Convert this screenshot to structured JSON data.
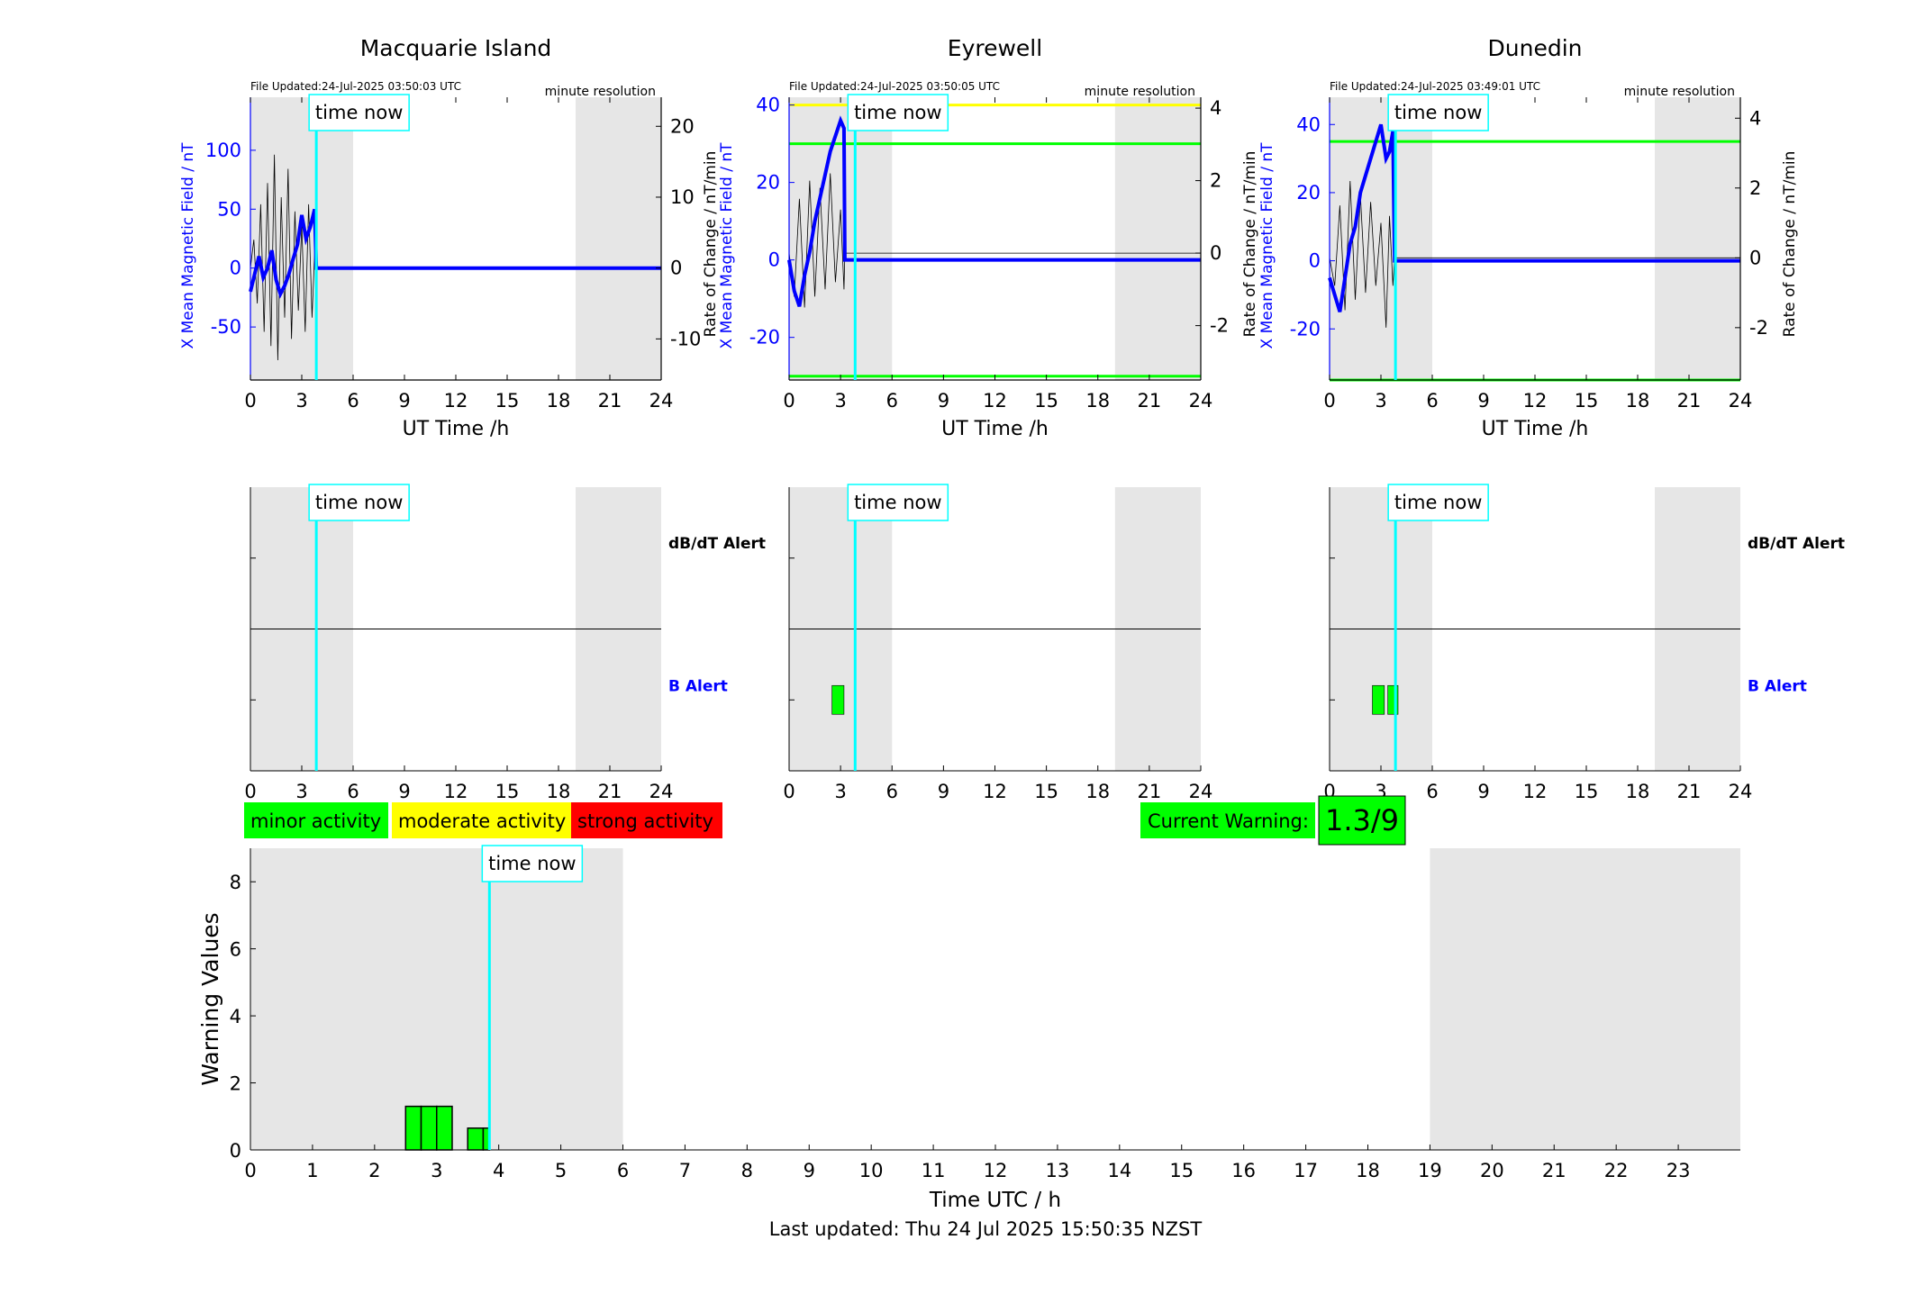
{
  "footer": {
    "last_updated": "Last updated: Thu 24 Jul 2025 15:50:35 NZST"
  },
  "colors": {
    "x_field": "#0000ff",
    "rate_of_change": "#000000",
    "time_now": "#00ffff",
    "night_shade": "#e6e6e6",
    "minor": "#00ff00",
    "moderate": "#ffff00",
    "strong": "#ff0000"
  },
  "legend": {
    "minor": "minor activity",
    "moderate": "moderate activity",
    "strong": "strong activity"
  },
  "current_warning": {
    "label": "Current Warning:",
    "value": "1.3/9"
  },
  "chart_data": [
    {
      "type": "line",
      "title": "Macquarie Island",
      "file_updated": "File Updated:24-Jul-2025 03:50:03 UTC",
      "resolution": "minute resolution",
      "time_now_label": "time now",
      "time_now": 3.85,
      "night_shade": [
        [
          0,
          6
        ],
        [
          19,
          24
        ]
      ],
      "xlabel": "UT Time /h",
      "ylabel": "X Mean Magnetic Field / nT",
      "ylabel_right": "Rate of Change / nT/min",
      "xlim": [
        0,
        24
      ],
      "xticks": [
        0,
        3,
        6,
        9,
        12,
        15,
        18,
        21,
        24
      ],
      "ylim": [
        -95,
        145
      ],
      "yticks": [
        -50,
        0,
        50,
        100
      ],
      "ylim_right": [
        -15.8,
        24.1
      ],
      "yticks_right": [
        -10,
        0,
        10,
        20
      ],
      "series": [
        {
          "axis": "left",
          "x": [
            0,
            0.25,
            0.5,
            0.75,
            1.0,
            1.25,
            1.5,
            1.75,
            2.0,
            2.25,
            2.5,
            2.75,
            3.0,
            3.25,
            3.5,
            3.75,
            3.85,
            24
          ],
          "y": [
            -20,
            -5,
            10,
            -8,
            0,
            15,
            -10,
            -22,
            -15,
            -5,
            8,
            20,
            45,
            25,
            35,
            50,
            0,
            0
          ]
        },
        {
          "axis": "right",
          "x": [
            0,
            0.2,
            0.4,
            0.6,
            0.8,
            1.0,
            1.2,
            1.4,
            1.6,
            1.8,
            2.0,
            2.2,
            2.4,
            2.6,
            2.8,
            3.0,
            3.2,
            3.4,
            3.6,
            3.8,
            3.85,
            24
          ],
          "y": [
            0,
            4,
            -5,
            9,
            -9,
            12,
            -11,
            16,
            -13,
            10,
            -7,
            14,
            -10,
            8,
            -6,
            6,
            -9,
            9,
            -7,
            5,
            0,
            0
          ]
        }
      ]
    },
    {
      "type": "line",
      "title": "Eyrewell",
      "file_updated": "File Updated:24-Jul-2025 03:50:05 UTC",
      "resolution": "minute resolution",
      "time_now_label": "time now",
      "time_now": 3.85,
      "night_shade": [
        [
          0,
          6
        ],
        [
          19,
          24
        ]
      ],
      "xlabel": "UT Time /h",
      "ylabel": "X Mean Magnetic Field / nT",
      "ylabel_right": "Rate of Change / nT/min",
      "xlim": [
        0,
        24
      ],
      "xticks": [
        0,
        3,
        6,
        9,
        12,
        15,
        18,
        21,
        24
      ],
      "ylim": [
        -31,
        42
      ],
      "yticks": [
        -20,
        0,
        20,
        40
      ],
      "ylim_right": [
        -3.5,
        4.3
      ],
      "yticks_right": [
        -2,
        0,
        2,
        4
      ],
      "thresholds": [
        {
          "axis": "left",
          "value": 40,
          "color": "#ffff00"
        },
        {
          "axis": "left",
          "value": 30,
          "color": "#00ff00"
        },
        {
          "axis": "left",
          "value": -30,
          "color": "#00ff00"
        }
      ],
      "series": [
        {
          "axis": "left",
          "x": [
            0,
            0.3,
            0.6,
            0.9,
            1.2,
            1.5,
            1.8,
            2.1,
            2.4,
            2.7,
            3.0,
            3.2,
            3.25,
            24
          ],
          "y": [
            0,
            -8,
            -12,
            -4,
            2,
            10,
            16,
            22,
            28,
            32,
            36,
            34,
            0,
            0
          ]
        },
        {
          "axis": "right",
          "x": [
            0,
            0.3,
            0.6,
            0.9,
            1.2,
            1.5,
            1.8,
            2.1,
            2.4,
            2.7,
            3.0,
            3.2,
            3.25,
            24
          ],
          "y": [
            0,
            -1.2,
            1.5,
            -1.5,
            2.0,
            -1.2,
            1.8,
            -1.0,
            2.2,
            -0.8,
            1.2,
            -1.0,
            0,
            0
          ]
        }
      ]
    },
    {
      "type": "line",
      "title": "Dunedin",
      "file_updated": "File Updated:24-Jul-2025 03:49:01 UTC",
      "resolution": "minute resolution",
      "time_now_label": "time now",
      "time_now": 3.85,
      "night_shade": [
        [
          0,
          6
        ],
        [
          19,
          24
        ]
      ],
      "xlabel": "UT Time /h",
      "ylabel": "X Mean Magnetic Field / nT",
      "ylabel_right": "Rate of Change / nT/min",
      "xlim": [
        0,
        24
      ],
      "xticks": [
        0,
        3,
        6,
        9,
        12,
        15,
        18,
        21,
        24
      ],
      "ylim": [
        -35,
        48
      ],
      "yticks": [
        -20,
        0,
        20,
        40
      ],
      "ylim_right": [
        -3.5,
        4.6
      ],
      "yticks_right": [
        -2,
        0,
        2,
        4
      ],
      "thresholds": [
        {
          "axis": "left",
          "value": 35,
          "color": "#00ff00"
        },
        {
          "axis": "left",
          "value": -35,
          "color": "#00ff00"
        }
      ],
      "series": [
        {
          "axis": "left",
          "x": [
            0,
            0.3,
            0.6,
            0.9,
            1.2,
            1.5,
            1.8,
            2.1,
            2.4,
            2.7,
            3.0,
            3.3,
            3.5,
            3.7,
            3.8,
            24
          ],
          "y": [
            -5,
            -10,
            -15,
            -5,
            5,
            10,
            20,
            25,
            30,
            35,
            40,
            30,
            32,
            38,
            0,
            0
          ]
        },
        {
          "axis": "right",
          "x": [
            0,
            0.3,
            0.6,
            0.9,
            1.2,
            1.5,
            1.8,
            2.1,
            2.4,
            2.7,
            3.0,
            3.3,
            3.5,
            3.7,
            3.8,
            24
          ],
          "y": [
            0,
            -0.8,
            1.5,
            -1.5,
            2.2,
            -1.2,
            1.8,
            -1.0,
            1.6,
            -0.8,
            1.0,
            -2.0,
            1.2,
            -0.8,
            0,
            0
          ]
        }
      ]
    },
    {
      "type": "bar",
      "title": "",
      "time_now_label": "time now",
      "time_now": 3.85,
      "night_shade": [
        [
          0,
          6
        ],
        [
          19,
          24
        ]
      ],
      "xlim": [
        0,
        24
      ],
      "xticks": [
        0,
        3,
        6,
        9,
        12,
        15,
        18,
        21,
        24
      ],
      "dbdt_label": "dB/dT Alert",
      "b_label": "B Alert",
      "b_alerts": []
    },
    {
      "type": "bar",
      "title": "",
      "time_now_label": "time now",
      "time_now": 3.85,
      "night_shade": [
        [
          0,
          6
        ],
        [
          19,
          24
        ]
      ],
      "xlim": [
        0,
        24
      ],
      "xticks": [
        0,
        3,
        6,
        9,
        12,
        15,
        18,
        21,
        24
      ],
      "b_alerts": [
        [
          2.5,
          3.2
        ]
      ]
    },
    {
      "type": "bar",
      "title": "",
      "time_now_label": "time now",
      "time_now": 3.85,
      "night_shade": [
        [
          0,
          6
        ],
        [
          19,
          24
        ]
      ],
      "xlim": [
        0,
        24
      ],
      "xticks": [
        0,
        3,
        6,
        9,
        12,
        15,
        18,
        21,
        24
      ],
      "dbdt_label": "dB/dT Alert",
      "b_label": "B Alert",
      "b_alerts": [
        [
          2.5,
          3.2
        ],
        [
          3.4,
          4.0
        ]
      ]
    },
    {
      "type": "bar",
      "title": "",
      "time_now_label": "time now",
      "time_now": 3.85,
      "night_shade": [
        [
          0,
          6
        ],
        [
          19,
          24
        ]
      ],
      "xlabel": "Time UTC / h",
      "ylabel": "Warning Values",
      "xlim": [
        0,
        24
      ],
      "xticks": [
        0,
        1,
        2,
        3,
        4,
        5,
        6,
        7,
        8,
        9,
        10,
        11,
        12,
        13,
        14,
        15,
        16,
        17,
        18,
        19,
        20,
        21,
        22,
        23
      ],
      "ylim": [
        0,
        9
      ],
      "yticks": [
        0,
        2,
        4,
        6,
        8
      ],
      "bars": [
        {
          "x0": 2.5,
          "x1": 2.75,
          "value": 1.3
        },
        {
          "x0": 2.75,
          "x1": 3.0,
          "value": 1.3
        },
        {
          "x0": 3.0,
          "x1": 3.25,
          "value": 1.3
        },
        {
          "x0": 3.5,
          "x1": 3.75,
          "value": 0.65
        },
        {
          "x0": 3.75,
          "x1": 3.85,
          "value": 0.65
        }
      ]
    }
  ]
}
